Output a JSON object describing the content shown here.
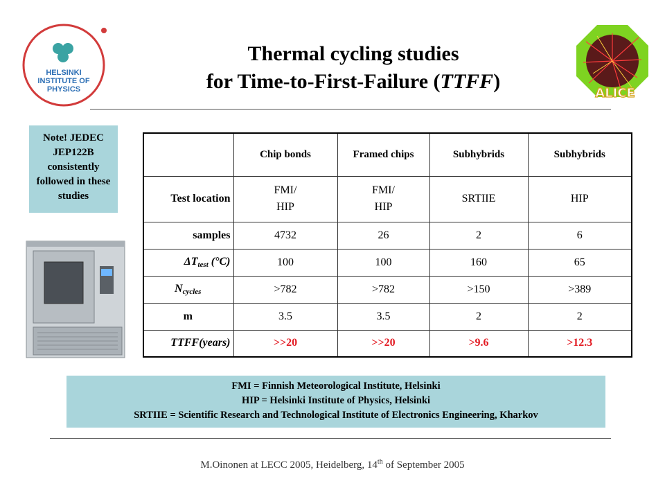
{
  "title": {
    "line1": "Thermal cycling studies",
    "line2_prefix": "for Time-to-First-Failure (",
    "line2_abbr": "TTFF",
    "line2_suffix": ")"
  },
  "logos": {
    "left_text": [
      "HELSINKI",
      "INSTITUTE OF",
      "PHYSICS"
    ],
    "right_text": "ALICE"
  },
  "note": "Note! JEDEC JEP122B consistently followed in these studies",
  "table": {
    "headers": [
      "",
      "Chip bonds",
      "Framed chips",
      "Subhybrids",
      "Subhybrids"
    ],
    "location": {
      "label": "Test location",
      "values": [
        [
          "FMI/",
          "HIP"
        ],
        [
          "FMI/",
          "HIP"
        ],
        "SRTIIE",
        "HIP"
      ]
    },
    "samples": {
      "label": "samples",
      "values": [
        "4732",
        "26",
        "2",
        "6"
      ]
    },
    "dt": {
      "label_prefix": "ΔT",
      "label_sub": "test",
      "label_suffix": " (°C)",
      "values": [
        "100",
        "100",
        "160",
        "65"
      ]
    },
    "ncycles": {
      "label_main": "N",
      "label_sub": "cycles",
      "values": [
        ">782",
        ">782",
        ">150",
        ">389"
      ]
    },
    "m": {
      "label": "m",
      "values": [
        "3.5",
        "3.5",
        "2",
        "2"
      ]
    },
    "ttff": {
      "label": "TTFF(years)",
      "values": [
        ">>20",
        ">>20",
        ">9.6",
        ">12.3"
      ]
    }
  },
  "legend": [
    "FMI = Finnish Meteorological Institute, Helsinki",
    "HIP = Helsinki Institute of Physics, Helsinki",
    "SRTIIE = Scientific Research and Technological Institute of Electronics Engineering, Kharkov"
  ],
  "footer": {
    "prefix": "M.Oinonen at LECC 2005, Heidelberg, 14",
    "sup": "th",
    "suffix": " of September 2005"
  },
  "colors": {
    "accent_box": "#a9d5db",
    "highlight_text": "#e31b23"
  }
}
